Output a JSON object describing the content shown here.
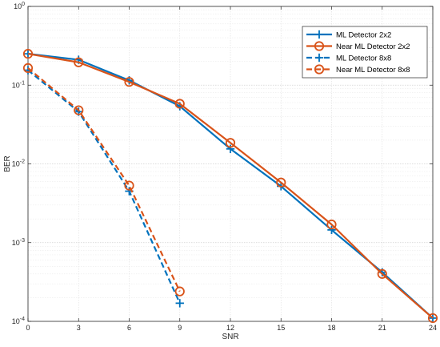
{
  "chart_data": {
    "type": "line",
    "xlabel": "SNR",
    "ylabel": "BER",
    "xlim": [
      0,
      24
    ],
    "ylim": [
      0.0001,
      1
    ],
    "yscale": "log",
    "grid": true,
    "legend_position": "top-right",
    "x_ticks": [
      0,
      3,
      6,
      9,
      12,
      15,
      18,
      21,
      24
    ],
    "y_tick_labels": [
      {
        "base": "10",
        "exp": "-4"
      },
      {
        "base": "10",
        "exp": "-3"
      },
      {
        "base": "10",
        "exp": "-2"
      },
      {
        "base": "10",
        "exp": "-1"
      },
      {
        "base": "10",
        "exp": "0"
      }
    ],
    "series": [
      {
        "name": "ML Detector 2x2",
        "color": "#0072BD",
        "line": "solid",
        "marker": "plus",
        "x": [
          0,
          3,
          6,
          9,
          12,
          15,
          18,
          21,
          24
        ],
        "y": [
          0.25,
          0.21,
          0.115,
          0.054,
          0.0155,
          0.0052,
          0.00145,
          0.00042,
          0.00011
        ]
      },
      {
        "name": "Near ML Detector 2x2",
        "color": "#D95319",
        "line": "solid",
        "marker": "circle",
        "x": [
          0,
          3,
          6,
          9,
          12,
          15,
          18,
          21,
          24
        ],
        "y": [
          0.25,
          0.195,
          0.11,
          0.058,
          0.0185,
          0.0058,
          0.0017,
          0.0004,
          0.00011
        ]
      },
      {
        "name": "ML Detector 8x8",
        "color": "#0072BD",
        "line": "dashed",
        "marker": "plus",
        "x": [
          0,
          3,
          6,
          9
        ],
        "y": [
          0.155,
          0.046,
          0.0045,
          0.00017
        ]
      },
      {
        "name": "Near ML Detector 8x8",
        "color": "#D95319",
        "line": "dashed",
        "marker": "circle",
        "x": [
          0,
          3,
          6,
          9
        ],
        "y": [
          0.165,
          0.048,
          0.0053,
          0.00024
        ]
      }
    ]
  }
}
